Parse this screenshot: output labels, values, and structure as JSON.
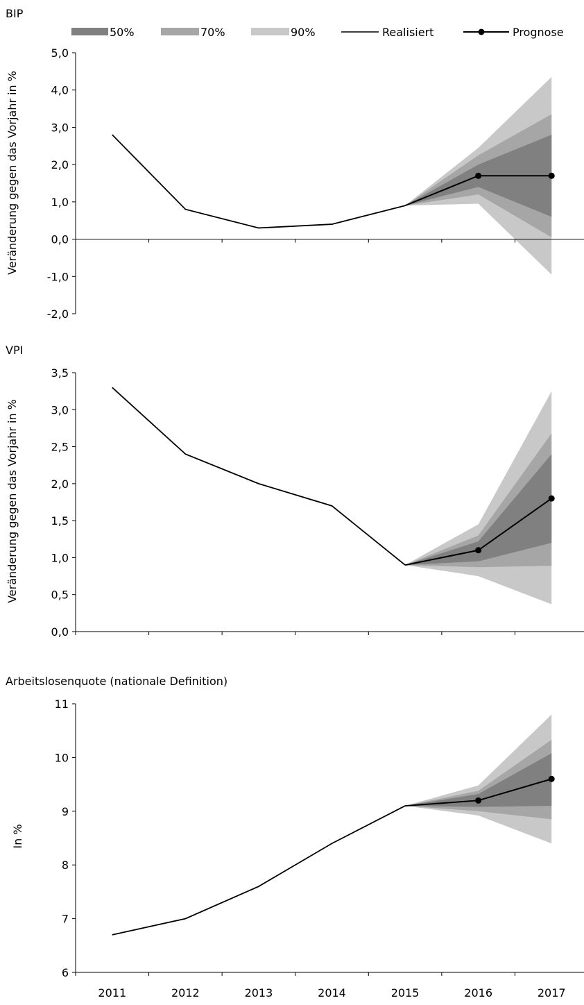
{
  "legend": {
    "band50": "50%",
    "band70": "70%",
    "band90": "90%",
    "realized": "Realisiert",
    "forecast": "Prognose"
  },
  "colors": {
    "band50": "#808080",
    "band70": "#a6a6a6",
    "band90": "#c8c8c8",
    "line": "#000000"
  },
  "chart_data": [
    {
      "type": "line",
      "title": "BIP",
      "ylabel": "Veränderung gegen das Vorjahr in %",
      "xlabel": "",
      "ylim": [
        -2.0,
        5.0
      ],
      "yticks": [
        -2.0,
        -1.0,
        0.0,
        1.0,
        2.0,
        3.0,
        4.0,
        5.0
      ],
      "tick_decimals": 1,
      "zero_line": true,
      "grid": false,
      "categories": [
        "2011",
        "2012",
        "2013",
        "2014",
        "2015",
        "2016",
        "2017"
      ],
      "series": [
        {
          "name": "Realisiert",
          "x": [
            2011,
            2012,
            2013,
            2014,
            2015
          ],
          "values": [
            2.8,
            0.8,
            0.3,
            0.4,
            0.9
          ]
        },
        {
          "name": "Prognose",
          "x": [
            2015,
            2016,
            2017
          ],
          "values": [
            0.9,
            1.7,
            1.7
          ]
        }
      ],
      "bands": [
        {
          "name": "90%",
          "x": [
            2015,
            2016,
            2017
          ],
          "upper": [
            0.9,
            2.45,
            4.35
          ],
          "lower": [
            0.9,
            0.95,
            -0.95
          ]
        },
        {
          "name": "70%",
          "x": [
            2015,
            2016,
            2017
          ],
          "upper": [
            0.9,
            2.25,
            3.35
          ],
          "lower": [
            0.9,
            1.2,
            0.05
          ]
        },
        {
          "name": "50%",
          "x": [
            2015,
            2016,
            2017
          ],
          "upper": [
            0.9,
            2.0,
            2.8
          ],
          "lower": [
            0.9,
            1.4,
            0.6
          ]
        }
      ]
    },
    {
      "type": "line",
      "title": "VPI",
      "ylabel": "Veränderung gegen das Vorjahr in %",
      "xlabel": "",
      "ylim": [
        0.0,
        3.5
      ],
      "yticks": [
        0.0,
        0.5,
        1.0,
        1.5,
        2.0,
        2.5,
        3.0,
        3.5
      ],
      "tick_decimals": 1,
      "zero_line": false,
      "grid": false,
      "categories": [
        "2011",
        "2012",
        "2013",
        "2014",
        "2015",
        "2016",
        "2017"
      ],
      "series": [
        {
          "name": "Realisiert",
          "x": [
            2011,
            2012,
            2013,
            2014,
            2015
          ],
          "values": [
            3.3,
            2.4,
            2.0,
            1.7,
            0.9
          ]
        },
        {
          "name": "Prognose",
          "x": [
            2015,
            2016,
            2017
          ],
          "values": [
            0.9,
            1.1,
            1.8
          ]
        }
      ],
      "bands": [
        {
          "name": "90%",
          "x": [
            2015,
            2016,
            2017
          ],
          "upper": [
            0.9,
            1.45,
            3.25
          ],
          "lower": [
            0.9,
            0.75,
            0.37
          ]
        },
        {
          "name": "70%",
          "x": [
            2015,
            2016,
            2017
          ],
          "upper": [
            0.9,
            1.3,
            2.68
          ],
          "lower": [
            0.9,
            0.87,
            0.89
          ]
        },
        {
          "name": "50%",
          "x": [
            2015,
            2016,
            2017
          ],
          "upper": [
            0.9,
            1.22,
            2.4
          ],
          "lower": [
            0.9,
            0.95,
            1.2
          ]
        }
      ]
    },
    {
      "type": "line",
      "title": "Arbeitslosenquote (nationale Definition)",
      "ylabel": "In %",
      "xlabel": "",
      "ylim": [
        6,
        11
      ],
      "yticks": [
        6,
        7,
        8,
        9,
        10,
        11
      ],
      "tick_decimals": 0,
      "zero_line": false,
      "grid": false,
      "categories": [
        "2011",
        "2012",
        "2013",
        "2014",
        "2015",
        "2016",
        "2017"
      ],
      "series": [
        {
          "name": "Realisiert",
          "x": [
            2011,
            2012,
            2013,
            2014,
            2015
          ],
          "values": [
            6.7,
            7.0,
            7.6,
            8.4,
            9.1
          ]
        },
        {
          "name": "Prognose",
          "x": [
            2015,
            2016,
            2017
          ],
          "values": [
            9.1,
            9.2,
            9.6
          ]
        }
      ],
      "bands": [
        {
          "name": "90%",
          "x": [
            2015,
            2016,
            2017
          ],
          "upper": [
            9.1,
            9.48,
            10.8
          ],
          "lower": [
            9.1,
            8.92,
            8.4
          ]
        },
        {
          "name": "70%",
          "x": [
            2015,
            2016,
            2017
          ],
          "upper": [
            9.1,
            9.38,
            10.33
          ],
          "lower": [
            9.1,
            9.0,
            8.85
          ]
        },
        {
          "name": "50%",
          "x": [
            2015,
            2016,
            2017
          ],
          "upper": [
            9.1,
            9.32,
            10.08
          ],
          "lower": [
            9.1,
            9.08,
            9.1
          ]
        }
      ]
    }
  ]
}
